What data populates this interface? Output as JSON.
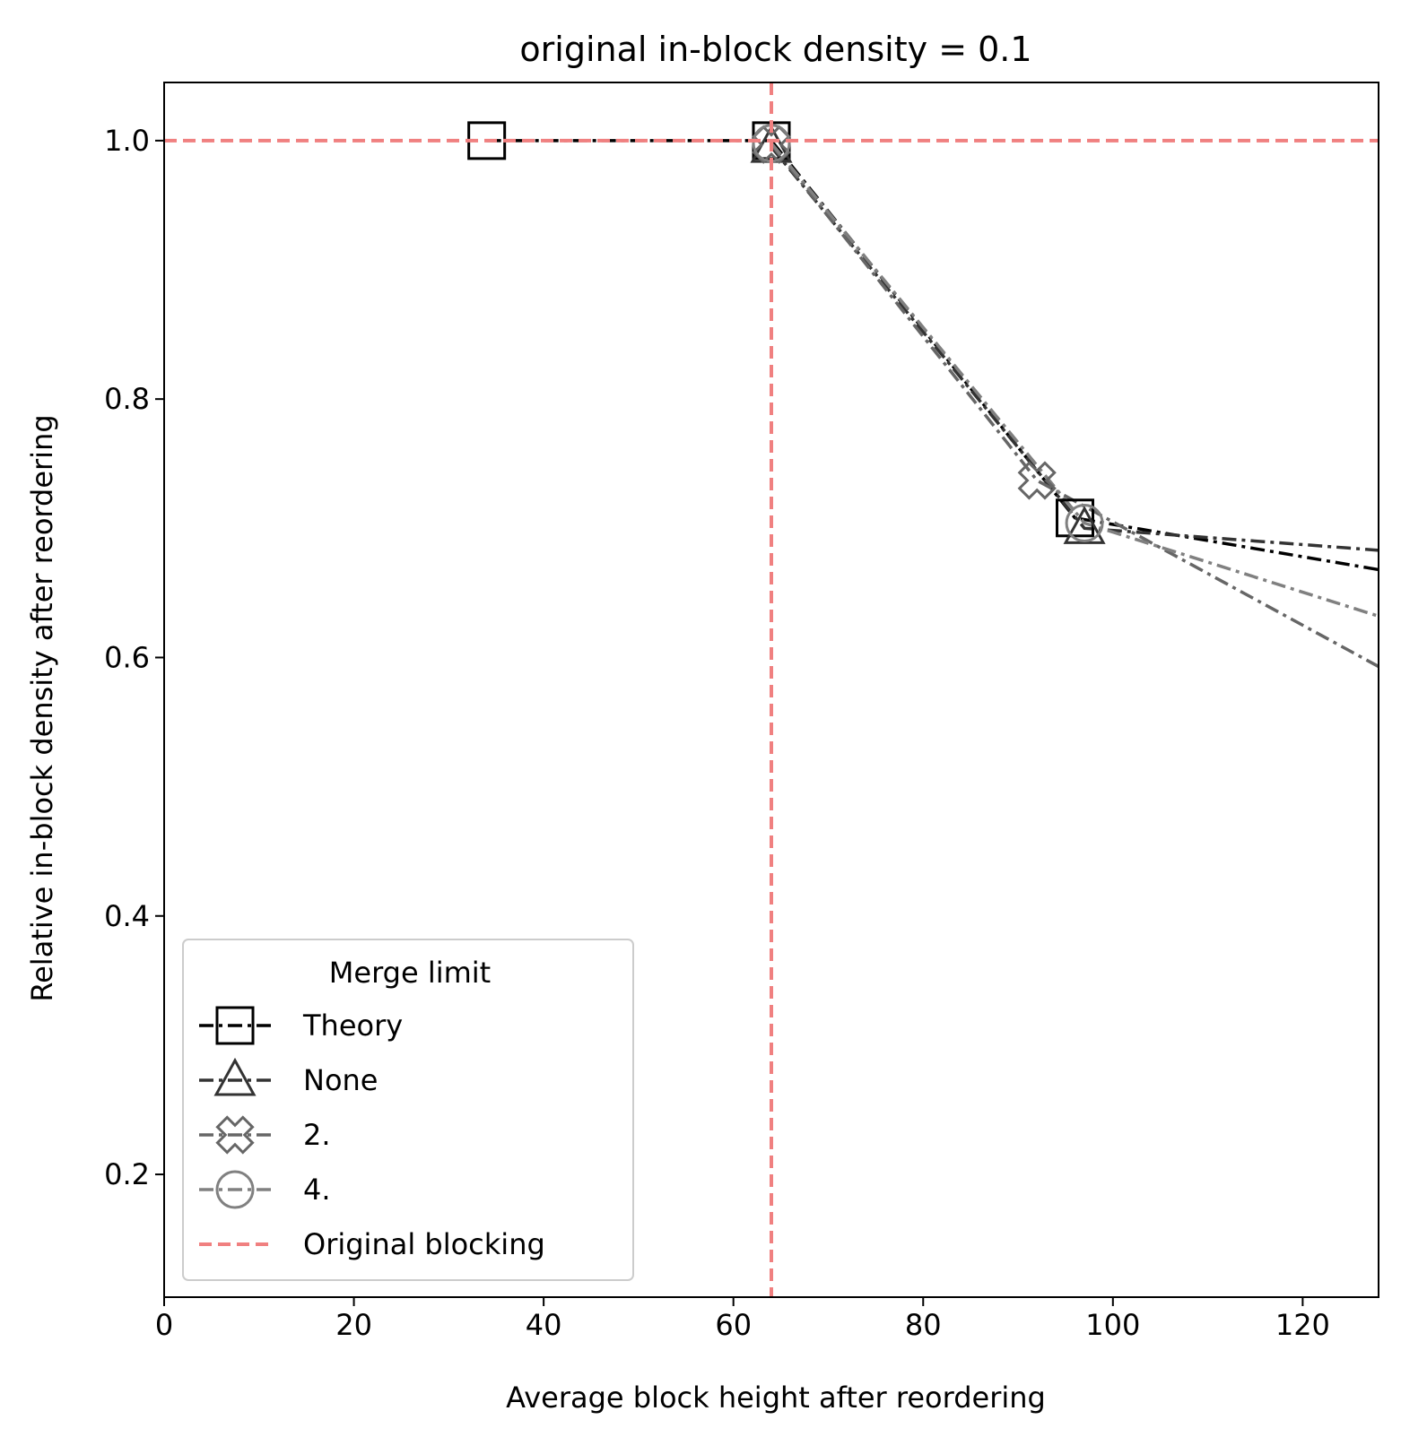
{
  "chart_data": {
    "type": "line",
    "title": "original in-block density = 0.1",
    "xlabel": "Average block height after reordering",
    "ylabel": "Relative in-block density after reordering",
    "xlim": [
      0,
      128
    ],
    "ylim": [
      0.105,
      1.045
    ],
    "x_ticks": [
      0,
      20,
      40,
      60,
      80,
      100,
      120
    ],
    "x_tick_labels": [
      "0",
      "20",
      "40",
      "60",
      "80",
      "100",
      "120"
    ],
    "y_ticks": [
      0.2,
      0.4,
      0.6,
      0.8,
      1.0
    ],
    "y_tick_labels": [
      "0.2",
      "0.4",
      "0.6",
      "0.8",
      "1.0"
    ],
    "grid": false,
    "legend": {
      "title": "Merge limit",
      "placement": "lower-left",
      "reference_label": "Original blocking"
    },
    "reference_lines": {
      "x": 64,
      "y": 1.0,
      "color": "#f08080",
      "style": "dashed"
    },
    "series": [
      {
        "name": "Theory",
        "marker": "square",
        "color": "#000000",
        "style": "dashdot",
        "x": [
          34,
          64,
          96,
          128
        ],
        "y": [
          1.0,
          1.0,
          0.708,
          0.668
        ]
      },
      {
        "name": "None",
        "marker": "triangle",
        "color": "#333333",
        "style": "dashdot",
        "x": [
          64,
          97,
          128
        ],
        "y": [
          0.995,
          0.7,
          0.683
        ]
      },
      {
        "name": "2.",
        "marker": "cross",
        "color": "#666666",
        "style": "dashdot",
        "x": [
          64,
          92,
          128
        ],
        "y": [
          0.997,
          0.737,
          0.593
        ]
      },
      {
        "name": "4.",
        "marker": "circle",
        "color": "#808080",
        "style": "dashdot",
        "x": [
          64,
          97,
          128
        ],
        "y": [
          0.998,
          0.704,
          0.632
        ]
      }
    ]
  }
}
